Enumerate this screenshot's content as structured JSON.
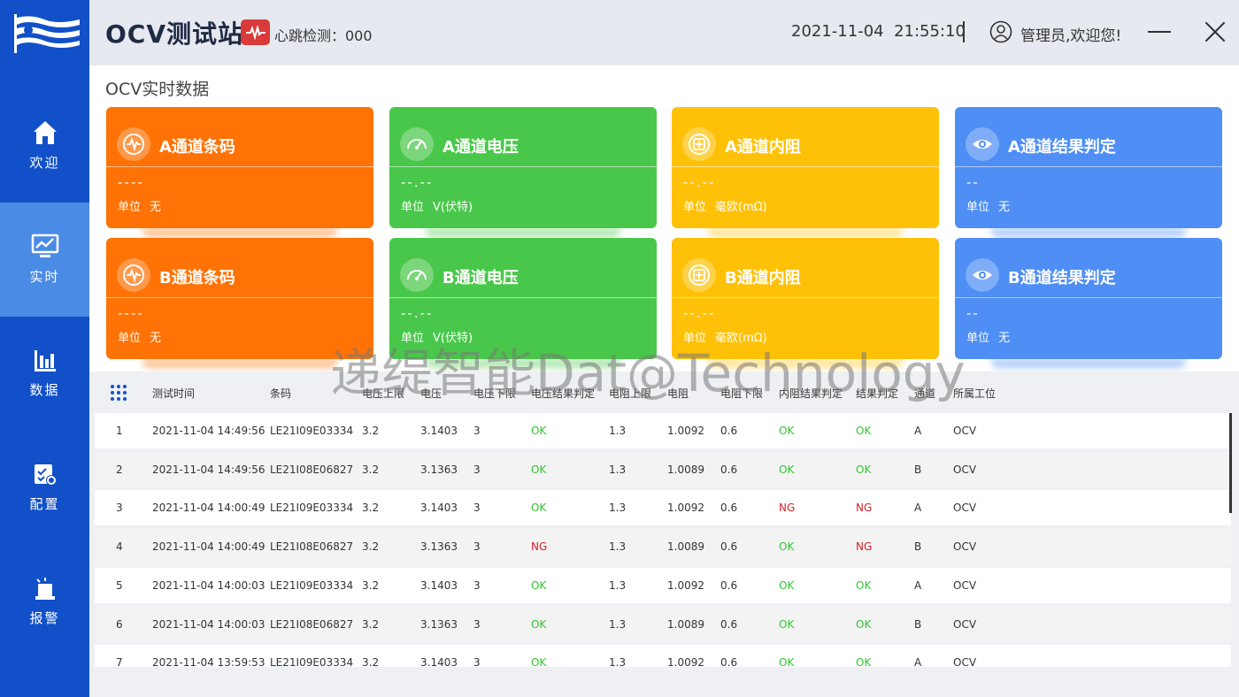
{
  "app": {
    "title": "OCV测试站",
    "heartbeat": "心跳检测：000"
  },
  "header": {
    "date": "2021-11-04",
    "time": "21:55:10",
    "user": "管理员,欢迎您!"
  },
  "nav": [
    {
      "label": "欢迎",
      "icon": "home-icon"
    },
    {
      "label": "实时",
      "icon": "monitor-chart-icon"
    },
    {
      "label": "数据",
      "icon": "bar-chart-icon"
    },
    {
      "label": "配置",
      "icon": "config-icon"
    },
    {
      "label": "报警",
      "icon": "alarm-icon"
    }
  ],
  "section_title": "OCV实时数据",
  "cards": {
    "a_barcode": {
      "title": "A通道条码",
      "value": "----",
      "unit_label": "单位",
      "unit": "无",
      "color": "#ff7205"
    },
    "a_voltage": {
      "title": "A通道电压",
      "value": "--.--",
      "unit_label": "单位",
      "unit": "V(伏特)",
      "color": "#49c74a"
    },
    "a_resistance": {
      "title": "A通道内阻",
      "value": "--.--",
      "unit_label": "单位",
      "unit": "毫欧(mΩ)",
      "color": "#ffc107"
    },
    "a_result": {
      "title": "A通道结果判定",
      "value": "--",
      "unit_label": "单位",
      "unit": "无",
      "color": "#4e8ef5"
    },
    "b_barcode": {
      "title": "B通道条码",
      "value": "----",
      "unit_label": "单位",
      "unit": "无",
      "color": "#ff7205"
    },
    "b_voltage": {
      "title": "B通道电压",
      "value": "--.--",
      "unit_label": "单位",
      "unit": "V(伏特)",
      "color": "#49c74a"
    },
    "b_resistance": {
      "title": "B通道内阻",
      "value": "--.--",
      "unit_label": "单位",
      "unit": "毫欧(mΩ)",
      "color": "#ffc107"
    },
    "b_result": {
      "title": "B通道结果判定",
      "value": "--",
      "unit_label": "单位",
      "unit": "无",
      "color": "#4e8ef5"
    }
  },
  "table": {
    "headers": [
      "测试时间",
      "条码",
      "电压上限",
      "电压",
      "电压下限",
      "电压结果判定",
      "电阻上限",
      "电阻",
      "电阻下限",
      "内阻结果判定",
      "结果判定",
      "通道",
      "所属工位"
    ],
    "rows": [
      [
        "1",
        "2021-11-04 14:49:56",
        "LE21I09E03334",
        "3.2",
        "3.1403",
        "3",
        "OK",
        "1.3",
        "1.0092",
        "0.6",
        "OK",
        "OK",
        "A",
        "OCV"
      ],
      [
        "2",
        "2021-11-04 14:49:56",
        "LE21I08E06827",
        "3.2",
        "3.1363",
        "3",
        "OK",
        "1.3",
        "1.0089",
        "0.6",
        "OK",
        "OK",
        "B",
        "OCV"
      ],
      [
        "3",
        "2021-11-04 14:00:49",
        "LE21I09E03334",
        "3.2",
        "3.1403",
        "3",
        "OK",
        "1.3",
        "1.0092",
        "0.6",
        "NG",
        "NG",
        "A",
        "OCV"
      ],
      [
        "4",
        "2021-11-04 14:00:49",
        "LE21I08E06827",
        "3.2",
        "3.1363",
        "3",
        "NG",
        "1.3",
        "1.0089",
        "0.6",
        "OK",
        "NG",
        "B",
        "OCV"
      ],
      [
        "5",
        "2021-11-04 14:00:03",
        "LE21I09E03334",
        "3.2",
        "3.1403",
        "3",
        "OK",
        "1.3",
        "1.0092",
        "0.6",
        "OK",
        "OK",
        "A",
        "OCV"
      ],
      [
        "6",
        "2021-11-04 14:00:03",
        "LE21I08E06827",
        "3.2",
        "3.1363",
        "3",
        "OK",
        "1.3",
        "1.0089",
        "0.6",
        "OK",
        "OK",
        "B",
        "OCV"
      ],
      [
        "7",
        "2021-11-04 13:59:53",
        "LE21I09E03334",
        "3.2",
        "3.1403",
        "3",
        "OK",
        "1.3",
        "1.0092",
        "0.6",
        "OK",
        "OK",
        "A",
        "OCV"
      ]
    ]
  },
  "watermark": "递缇智能Dat@Technology"
}
